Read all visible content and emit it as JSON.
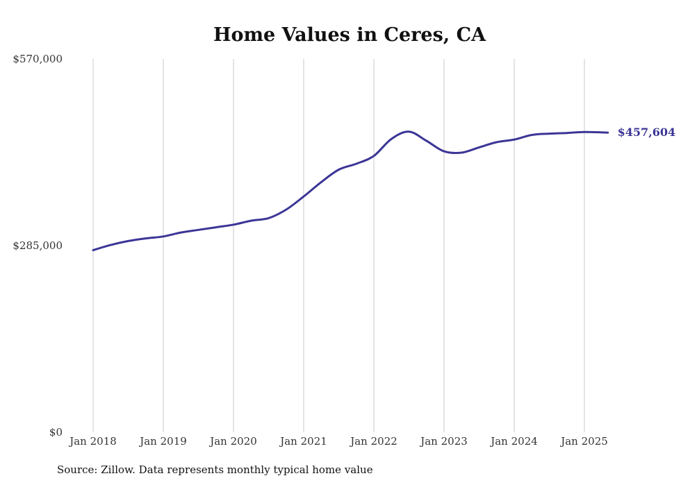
{
  "chart_data": {
    "type": "line",
    "title": "Home Values in Ceres, CA",
    "xlabel": "",
    "ylabel": "",
    "x_start": "2018-01",
    "x_end": "2025-05",
    "x_ticks": [
      {
        "label": "Jan 2018",
        "date": "2018-01"
      },
      {
        "label": "Jan 2019",
        "date": "2019-01"
      },
      {
        "label": "Jan 2020",
        "date": "2020-01"
      },
      {
        "label": "Jan 2021",
        "date": "2021-01"
      },
      {
        "label": "Jan 2022",
        "date": "2022-01"
      },
      {
        "label": "Jan 2023",
        "date": "2023-01"
      },
      {
        "label": "Jan 2024",
        "date": "2024-01"
      },
      {
        "label": "Jan 2025",
        "date": "2025-01"
      }
    ],
    "y_ticks": [
      {
        "label": "$570,000",
        "value": 570000
      },
      {
        "label": "$285,000",
        "value": 285000
      },
      {
        "label": "$0",
        "value": 0
      }
    ],
    "ylim": [
      0,
      570000
    ],
    "grid": "vertical",
    "line_color": "#3b3596",
    "end_label": "$457,604",
    "series": [
      {
        "x": [
          "2018-01",
          "2018-04",
          "2018-07",
          "2018-10",
          "2019-01",
          "2019-04",
          "2019-07",
          "2019-10",
          "2020-01",
          "2020-04",
          "2020-07",
          "2020-10",
          "2021-01",
          "2021-04",
          "2021-07",
          "2021-10",
          "2022-01",
          "2022-04",
          "2022-07",
          "2022-10",
          "2023-01",
          "2023-04",
          "2023-07",
          "2023-10",
          "2024-01",
          "2024-04",
          "2024-07",
          "2024-10",
          "2025-01",
          "2025-05"
        ],
        "values": [
          278000,
          286000,
          292000,
          296000,
          299000,
          305000,
          309000,
          313000,
          317000,
          323000,
          327000,
          340000,
          360000,
          382000,
          401000,
          410000,
          422000,
          448000,
          459000,
          445000,
          429000,
          427000,
          435000,
          443000,
          447000,
          454000,
          456000,
          457000,
          458500,
          457604
        ]
      }
    ]
  },
  "source_note": "Source: Zillow. Data represents monthly typical home value"
}
